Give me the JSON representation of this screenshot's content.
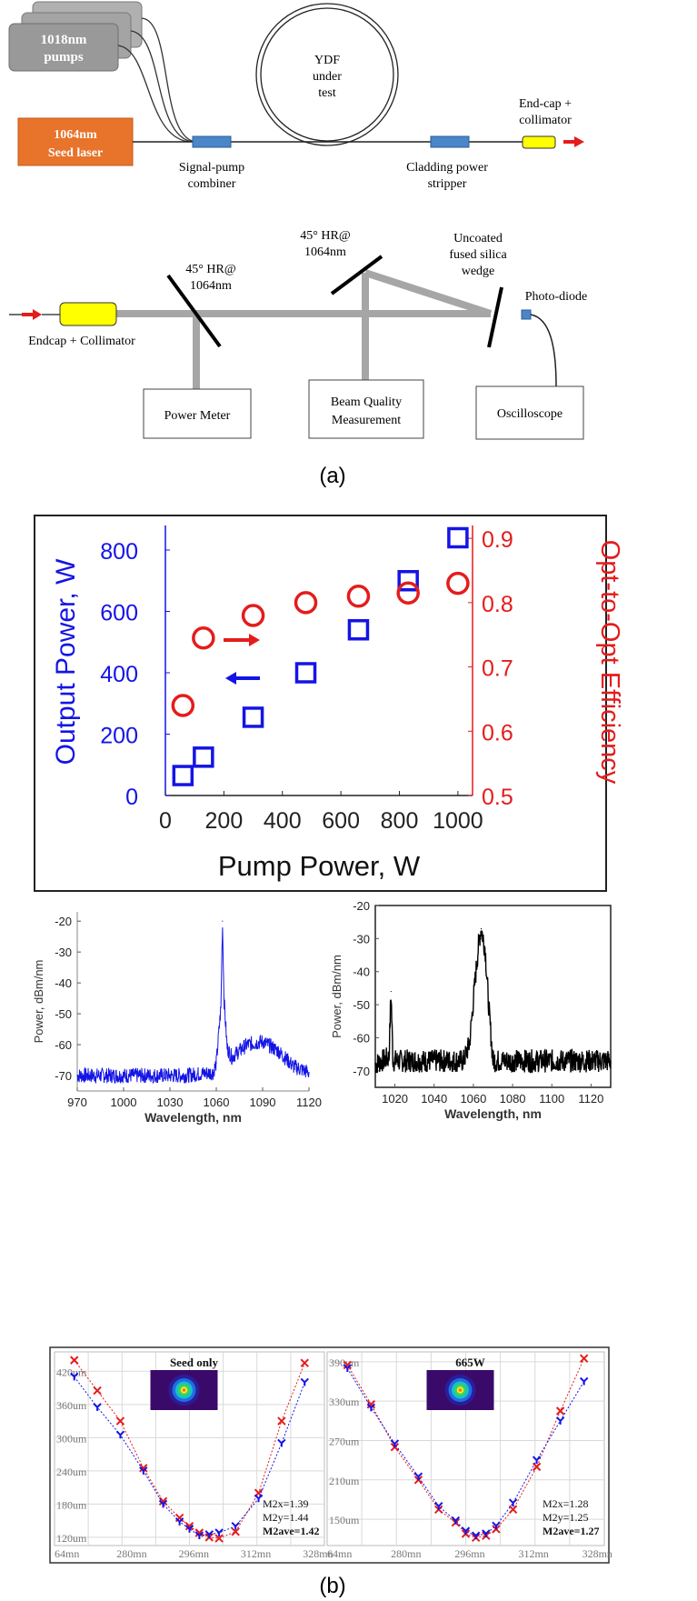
{
  "figure_a": {
    "setup1": {
      "pumps": [
        "1018nm",
        "pumps"
      ],
      "seed": [
        "1064nm",
        "Seed laser"
      ],
      "ydf": [
        "YDF",
        "under",
        "test"
      ],
      "combiner": [
        "Signal-pump",
        "combiner"
      ],
      "stripper": [
        "Cladding power",
        "stripper"
      ],
      "endcap": [
        "End-cap +",
        "collimator"
      ]
    },
    "setup2": {
      "endcap": "Endcap + Collimator",
      "hr1": [
        "45° HR@",
        "1064nm"
      ],
      "hr2": [
        "45° HR@",
        "1064nm"
      ],
      "wedge": [
        "Uncoated",
        "fused silica",
        "wedge"
      ],
      "photodiode": "Photo-diode",
      "power_meter": "Power Meter",
      "beam_quality": [
        "Beam Quality",
        "Measurement"
      ],
      "oscilloscope": "Oscilloscope"
    },
    "caption": "(a)"
  },
  "figure_b": {
    "caption": "(b)"
  },
  "colors": {
    "blue": "#1414e6",
    "red": "#e41c1c",
    "seed_orange": "#e8732a",
    "endcap_yellow": "#ffff00",
    "component_blue": "#4a86c8",
    "beam_gray": "#a6a6a6"
  },
  "chart_data": [
    {
      "type": "scatter",
      "xlabel": "Pump Power, W",
      "ylabel": "Output Power, W",
      "ylabel_right": "Opt-to-Opt Efficiency",
      "xlim": [
        0,
        1050
      ],
      "ylim": [
        0,
        880
      ],
      "ylim_right": [
        0.5,
        0.92
      ],
      "xticks": [
        0,
        200,
        400,
        600,
        800,
        1000
      ],
      "yticks": [
        0,
        200,
        400,
        600,
        800
      ],
      "yticks_right": [
        0.5,
        0.6,
        0.7,
        0.8,
        0.9
      ],
      "series": [
        {
          "axis": "left",
          "marker": "square",
          "color": "#1414e6",
          "x": [
            60,
            130,
            300,
            480,
            660,
            830,
            1000
          ],
          "y": [
            65,
            125,
            255,
            400,
            540,
            700,
            840
          ]
        },
        {
          "axis": "right",
          "marker": "circle",
          "color": "#e41c1c",
          "x": [
            60,
            130,
            300,
            480,
            660,
            830,
            1000
          ],
          "y": [
            0.64,
            0.745,
            0.78,
            0.8,
            0.81,
            0.815,
            0.83
          ]
        }
      ]
    },
    {
      "type": "line",
      "xlabel": "Wavelength, nm",
      "ylabel": "Power, dBm/nm",
      "xlim": [
        970,
        1120
      ],
      "ylim": [
        -75,
        -17
      ],
      "xticks": [
        970,
        1000,
        1030,
        1060,
        1090,
        1120
      ],
      "yticks": [
        -20,
        -30,
        -40,
        -50,
        -60,
        -70
      ],
      "series": [
        {
          "color": "#1414e6",
          "x": [
            970,
            1000,
            1040,
            1058,
            1060,
            1063,
            1064,
            1065,
            1067,
            1070,
            1080,
            1090,
            1100,
            1110,
            1120
          ],
          "y": [
            -70,
            -70,
            -70,
            -69,
            -66,
            -48,
            -20,
            -45,
            -61,
            -64,
            -60,
            -59,
            -62,
            -67,
            -69
          ]
        }
      ]
    },
    {
      "type": "line",
      "xlabel": "Wavelength, nm",
      "ylabel": "Power, dBm/nm",
      "xlim": [
        1010,
        1130
      ],
      "ylim": [
        -75,
        -20
      ],
      "xticks": [
        1020,
        1040,
        1060,
        1080,
        1100,
        1120
      ],
      "yticks": [
        -20,
        -30,
        -40,
        -50,
        -60,
        -70
      ],
      "series": [
        {
          "color": "#000000",
          "x": [
            1010,
            1017,
            1018,
            1019,
            1030,
            1055,
            1058,
            1061,
            1063,
            1064,
            1066,
            1068,
            1070,
            1090,
            1110,
            1130
          ],
          "y": [
            -68,
            -66,
            -46,
            -67,
            -67,
            -67,
            -62,
            -42,
            -30,
            -27,
            -33,
            -52,
            -67,
            -67,
            -67,
            -67
          ]
        }
      ]
    },
    {
      "type": "scatter",
      "title": "Seed only",
      "yticks": [
        "420um",
        "360um",
        "300um",
        "240um",
        "180um",
        "120um"
      ],
      "xticks": [
        "64mn",
        "280mn",
        "296mn",
        "312mn",
        "328mn"
      ],
      "annotations": [
        "M2x=1.39",
        "M2y=1.44",
        "M2ave=1.42"
      ],
      "series": [
        {
          "color": "#e41c1c",
          "marker": "x",
          "x": [
            264,
            271,
            278,
            285,
            291,
            296,
            299,
            302,
            305,
            308,
            313,
            320,
            327,
            334
          ],
          "y": [
            440,
            385,
            330,
            245,
            185,
            155,
            140,
            128,
            120,
            118,
            130,
            200,
            330,
            435
          ]
        },
        {
          "color": "#1414e6",
          "marker": "y",
          "x": [
            264,
            271,
            278,
            285,
            291,
            296,
            299,
            302,
            305,
            308,
            313,
            320,
            327,
            334
          ],
          "y": [
            410,
            355,
            305,
            240,
            180,
            148,
            135,
            123,
            125,
            128,
            140,
            190,
            290,
            400
          ]
        }
      ]
    },
    {
      "type": "scatter",
      "title": "665W",
      "yticks": [
        "390um",
        "330um",
        "270um",
        "210um",
        "150um"
      ],
      "xticks": [
        "64mn",
        "280mn",
        "296mn",
        "312mn",
        "328mn"
      ],
      "annotations": [
        "M2x=1.28",
        "M2y=1.25",
        "M2ave=1.27"
      ],
      "series": [
        {
          "color": "#e41c1c",
          "marker": "x",
          "x": [
            264,
            271,
            278,
            285,
            291,
            296,
            299,
            302,
            305,
            308,
            313,
            320,
            327,
            334
          ],
          "y": [
            385,
            325,
            260,
            210,
            165,
            145,
            128,
            122,
            125,
            135,
            165,
            230,
            315,
            395
          ]
        },
        {
          "color": "#1414e6",
          "marker": "y",
          "x": [
            264,
            271,
            278,
            285,
            291,
            296,
            299,
            302,
            305,
            308,
            313,
            320,
            327,
            334
          ],
          "y": [
            380,
            320,
            265,
            215,
            170,
            148,
            132,
            125,
            128,
            140,
            175,
            240,
            300,
            360
          ]
        }
      ]
    }
  ]
}
